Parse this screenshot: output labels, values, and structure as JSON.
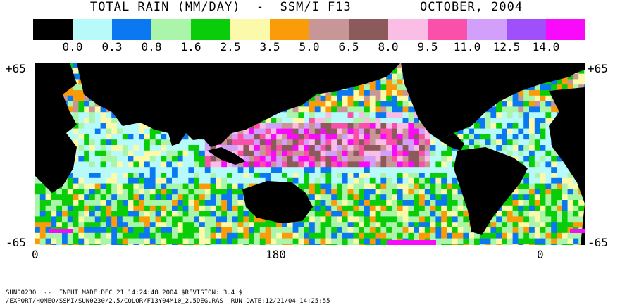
{
  "title": {
    "left": "TOTAL RAIN (MM/DAY)  -  SSM/I F13",
    "right": "OCTOBER, 2004"
  },
  "legend": {
    "colors": [
      "#000000",
      "#b8fafa",
      "#0a78f0",
      "#aaf5aa",
      "#0acd0a",
      "#fafaaa",
      "#fa9b0a",
      "#c89696",
      "#8c5a5a",
      "#fabee6",
      "#fa50aa",
      "#d2a0fa",
      "#a050fa",
      "#fa0afa"
    ],
    "labels": [
      "0.0",
      "0.3",
      "0.8",
      "1.6",
      "2.5",
      "3.5",
      "5.0",
      "6.5",
      "8.0",
      "9.5",
      "11.0",
      "12.5",
      "14.0"
    ]
  },
  "axes": {
    "lat_top_left": "+65",
    "lat_bottom_left": "-65",
    "lat_top_right": "+65",
    "lat_bottom_right": "-65",
    "lon_left": "0",
    "lon_mid": "180",
    "lon_right": "0"
  },
  "footer": {
    "line1": "SUN00230  --  INPUT MADE:DEC 21 14:24:48 2004 $REVISION: 3.4 $",
    "line2": "/EXPORT/HOMEO/SSMI/SUN0230/2.5/COLOR/F13Y04M10_2.5DEG.RAS  RUN DATE:12/21/04 14:25:55"
  }
}
